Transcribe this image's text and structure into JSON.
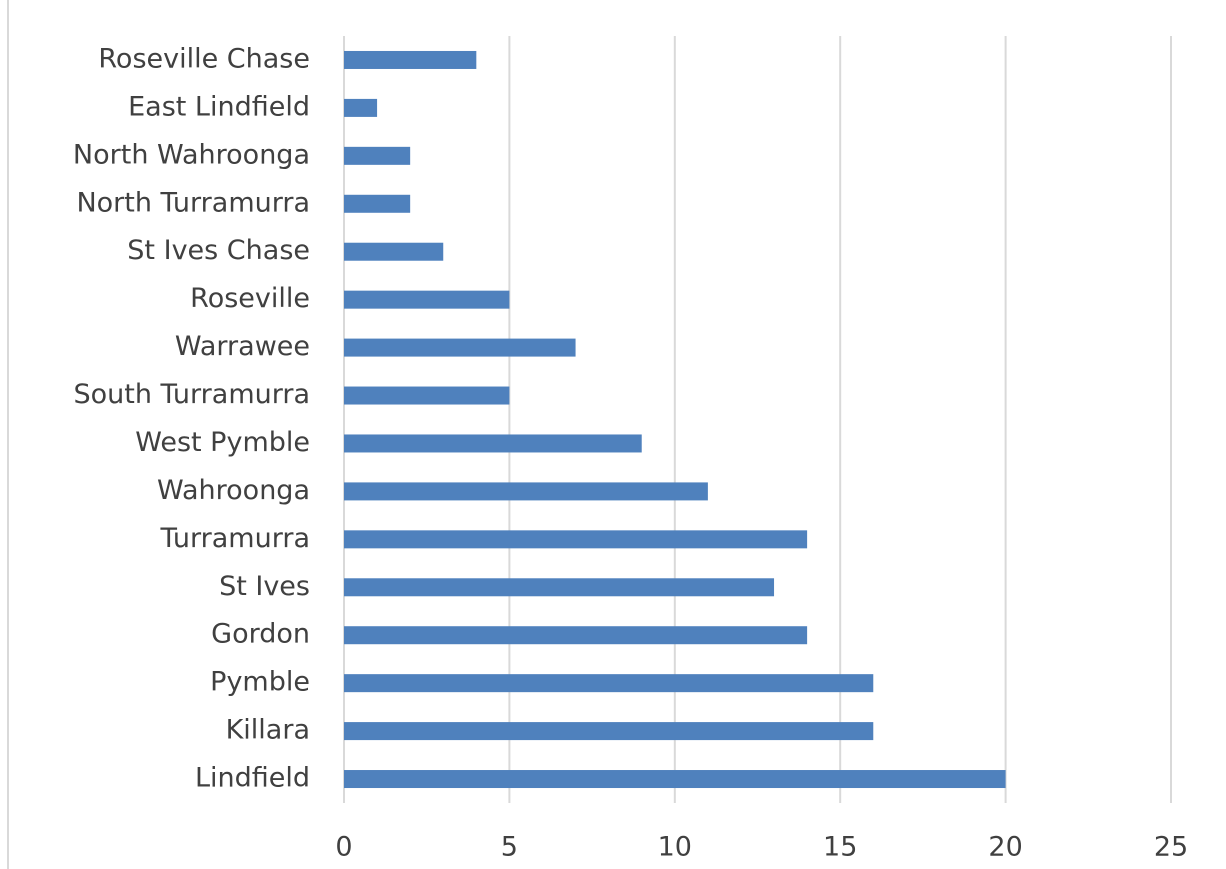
{
  "chart_data": {
    "type": "bar",
    "orientation": "horizontal",
    "categories": [
      "Roseville Chase",
      "East Lindfield",
      "North Wahroonga",
      "North Turramurra",
      "St Ives Chase",
      "Roseville",
      "Warrawee",
      "South Turramurra",
      "West Pymble",
      "Wahroonga",
      "Turramurra",
      "St Ives",
      "Gordon",
      "Pymble",
      "Killara",
      "Lindfield"
    ],
    "values": [
      4,
      1,
      2,
      2,
      3,
      5,
      7,
      5,
      9,
      11,
      14,
      13,
      14,
      16,
      16,
      20
    ],
    "color": "#4f81bd",
    "xlim": [
      0,
      25
    ],
    "xticks": [
      0,
      5,
      10,
      15,
      20,
      25
    ],
    "grid": true
  }
}
